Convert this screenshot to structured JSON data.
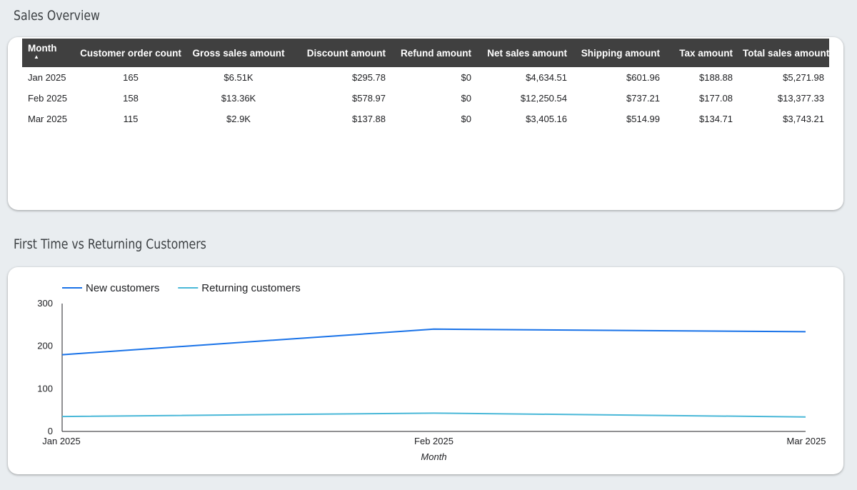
{
  "sales_overview": {
    "title": "Sales Overview",
    "columns": [
      "Month",
      "Customer order count",
      "Gross sales amount",
      "Discount amount",
      "Refund amount",
      "Net sales amount",
      "Shipping amount",
      "Tax amount",
      "Total sales amount"
    ],
    "sort_indicator": "▲",
    "rows": [
      [
        "Jan 2025",
        "165",
        "$6.51K",
        "$295.78",
        "$0",
        "$4,634.51",
        "$601.96",
        "$188.88",
        "$5,271.98"
      ],
      [
        "Feb 2025",
        "158",
        "$13.36K",
        "$578.97",
        "$0",
        "$12,250.54",
        "$737.21",
        "$177.08",
        "$13,377.33"
      ],
      [
        "Mar 2025",
        "115",
        "$2.9K",
        "$137.88",
        "$0",
        "$3,405.16",
        "$514.99",
        "$134.71",
        "$3,743.21"
      ]
    ]
  },
  "customers_chart": {
    "title": "First Time vs Returning Customers"
  },
  "chart_data": {
    "type": "line",
    "title": "First Time vs Returning Customers",
    "categories": [
      "Jan 2025",
      "Feb 2025",
      "Mar 2025"
    ],
    "series": [
      {
        "name": "New customers",
        "values": [
          180,
          240,
          234
        ],
        "color": "#1a73e8"
      },
      {
        "name": "Returning customers",
        "values": [
          35,
          43,
          34
        ],
        "color": "#4ab8d8"
      }
    ],
    "xlabel": "Month",
    "ylabel": "",
    "ylim": [
      0,
      300
    ],
    "yticks": [
      0,
      100,
      200,
      300
    ],
    "legend": "top-left",
    "grid": false
  }
}
